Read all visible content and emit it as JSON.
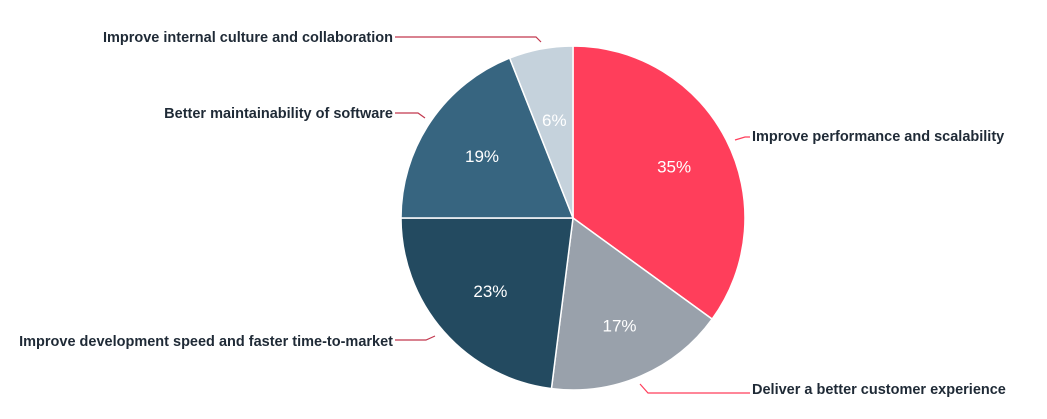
{
  "chart_data": {
    "type": "pie",
    "title": "",
    "slices": [
      {
        "label": "Improve performance and scalability",
        "value": 35,
        "value_label": "35%",
        "color": "#FF3E5B"
      },
      {
        "label": "Deliver a better customer experience",
        "value": 17,
        "value_label": "17%",
        "color": "#99A1AB"
      },
      {
        "label": "Improve development speed and faster time-to-market",
        "value": 23,
        "value_label": "23%",
        "color": "#234A60"
      },
      {
        "label": "Better maintainability of software",
        "value": 19,
        "value_label": "19%",
        "color": "#376580"
      },
      {
        "label": "Improve internal culture and collaboration",
        "value": 6,
        "value_label": "6%",
        "color": "#C5D2DC"
      }
    ],
    "start": "12 o'clock",
    "direction": "clockwise",
    "leader_line_colors": {
      "right": "#FF3E5B",
      "left": "#C2384E"
    }
  }
}
